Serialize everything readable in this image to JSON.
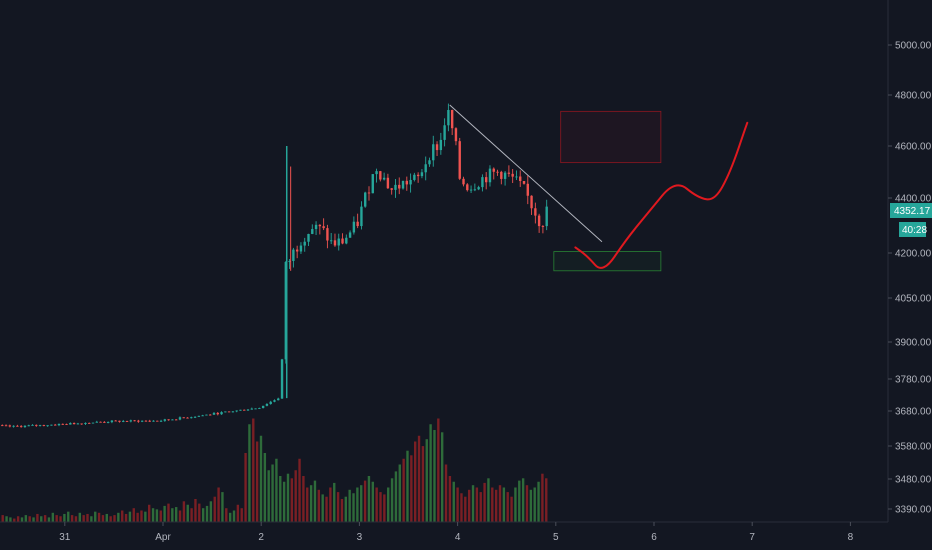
{
  "chart_data": {
    "type": "candlestick",
    "colors": {
      "background": "#131722",
      "up": "#26a69a",
      "down": "#ef5350",
      "volume_up": "#2e6b3a",
      "volume_down": "#7a1f24",
      "trendline": "#b2b5be",
      "projection": "#e0191f",
      "target_zone": "#e0191f",
      "support_zone": "#2e9e3a",
      "axis_text": "#b2b5be",
      "badge_price": "#26a69a",
      "badge_time": "#26a69a"
    },
    "y_axis": {
      "ticks": [
        "5000.00",
        "4800.00",
        "4600.00",
        "4400.00",
        "4200.00",
        "4050.00",
        "3900.00",
        "3780.00",
        "3680.00",
        "3580.00",
        "3480.00",
        "3390.00"
      ],
      "scale": "log"
    },
    "x_axis": {
      "ticks": [
        "31",
        "Apr",
        "2",
        "3",
        "4",
        "5",
        "6",
        "7",
        "8"
      ],
      "range": [
        -1.88,
        5.07
      ]
    },
    "current_price": "4352.17",
    "countdown": "40:28",
    "price_series": [
      {
        "t": -1.88,
        "p": 3640
      },
      {
        "t": -1.5,
        "p": 3635
      },
      {
        "t": -1.0,
        "p": 3642
      },
      {
        "t": -0.5,
        "p": 3650
      },
      {
        "t": 0.0,
        "p": 3652
      },
      {
        "t": 0.5,
        "p": 3670
      },
      {
        "t": 1.0,
        "p": 3690
      },
      {
        "t": 1.2,
        "p": 3720
      },
      {
        "t": 1.23,
        "p": 3725
      },
      {
        "t": 1.26,
        "p": 4140
      },
      {
        "t": 1.35,
        "p": 4200
      },
      {
        "t": 1.45,
        "p": 4260
      },
      {
        "t": 1.55,
        "p": 4290
      },
      {
        "t": 1.65,
        "p": 4280
      },
      {
        "t": 1.75,
        "p": 4230
      },
      {
        "t": 1.85,
        "p": 4240
      },
      {
        "t": 2.0,
        "p": 4300
      },
      {
        "t": 2.1,
        "p": 4420
      },
      {
        "t": 2.2,
        "p": 4520
      },
      {
        "t": 2.35,
        "p": 4430
      },
      {
        "t": 2.5,
        "p": 4460
      },
      {
        "t": 2.62,
        "p": 4470
      },
      {
        "t": 2.75,
        "p": 4580
      },
      {
        "t": 2.85,
        "p": 4610
      },
      {
        "t": 2.92,
        "p": 4740
      },
      {
        "t": 3.0,
        "p": 4620
      },
      {
        "t": 3.05,
        "p": 4470
      },
      {
        "t": 3.15,
        "p": 4440
      },
      {
        "t": 3.3,
        "p": 4480
      },
      {
        "t": 3.45,
        "p": 4500
      },
      {
        "t": 3.6,
        "p": 4470
      },
      {
        "t": 3.7,
        "p": 4430
      },
      {
        "t": 3.8,
        "p": 4360
      },
      {
        "t": 3.88,
        "p": 4300
      },
      {
        "t": 3.93,
        "p": 4352
      }
    ],
    "volume": [
      0.03,
      0.04,
      0.03,
      0.05,
      0.03,
      0.04,
      0.06,
      0.05,
      0.04,
      0.03,
      0.05,
      0.04,
      0.06,
      0.05,
      0.04,
      0.07,
      0.05,
      0.06,
      0.04,
      0.08,
      0.06,
      0.05,
      0.07,
      0.09,
      0.06,
      0.05,
      0.08,
      0.06,
      0.07,
      0.05,
      0.09,
      0.08,
      0.06,
      0.07,
      0.05,
      0.06,
      0.08,
      0.1,
      0.07,
      0.09,
      0.12,
      0.08,
      0.1,
      0.09,
      0.15,
      0.12,
      0.11,
      0.1,
      0.14,
      0.16,
      0.12,
      0.13,
      0.1,
      0.18,
      0.15,
      0.12,
      0.2,
      0.16,
      0.12,
      0.14,
      0.18,
      0.22,
      0.3,
      0.26,
      0.12,
      0.08,
      0.1,
      0.15,
      0.12,
      0.6,
      0.85,
      0.9,
      0.7,
      0.75,
      0.6,
      0.45,
      0.5,
      0.55,
      0.4,
      0.35,
      0.42,
      0.38,
      0.45,
      0.55,
      0.4,
      0.3,
      0.32,
      0.36,
      0.28,
      0.24,
      0.22,
      0.3,
      0.34,
      0.26,
      0.2,
      0.22,
      0.28,
      0.25,
      0.3,
      0.32,
      0.36,
      0.4,
      0.35,
      0.3,
      0.26,
      0.24,
      0.3,
      0.38,
      0.44,
      0.5,
      0.55,
      0.62,
      0.58,
      0.7,
      0.75,
      0.66,
      0.72,
      0.85,
      0.8,
      0.9,
      0.78,
      0.5,
      0.4,
      0.35,
      0.3,
      0.25,
      0.22,
      0.28,
      0.32,
      0.3,
      0.26,
      0.34,
      0.38,
      0.3,
      0.28,
      0.32,
      0.3,
      0.26,
      0.22,
      0.3,
      0.36,
      0.38,
      0.32,
      0.28,
      0.3,
      0.35,
      0.42,
      0.38
    ],
    "annotations": {
      "trendline": {
        "from": {
          "t": 2.92,
          "p": 4760
        },
        "to": {
          "t": 4.47,
          "p": 4240
        }
      },
      "target_zone": {
        "t0": 4.05,
        "t1": 5.07,
        "p0": 4535,
        "p1": 4735
      },
      "support_zone": {
        "t0": 3.98,
        "t1": 5.07,
        "p0": 4140,
        "p1": 4205
      },
      "projection": [
        {
          "t": 4.2,
          "p": 4220
        },
        {
          "t": 4.32,
          "p": 4190
        },
        {
          "t": 4.48,
          "p": 4130
        },
        {
          "t": 4.72,
          "p": 4250
        },
        {
          "t": 4.95,
          "p": 4350
        },
        {
          "t": 5.22,
          "p": 4470
        },
        {
          "t": 5.45,
          "p": 4400
        },
        {
          "t": 5.62,
          "p": 4390
        },
        {
          "t": 5.78,
          "p": 4500
        },
        {
          "t": 5.95,
          "p": 4690
        }
      ]
    }
  }
}
